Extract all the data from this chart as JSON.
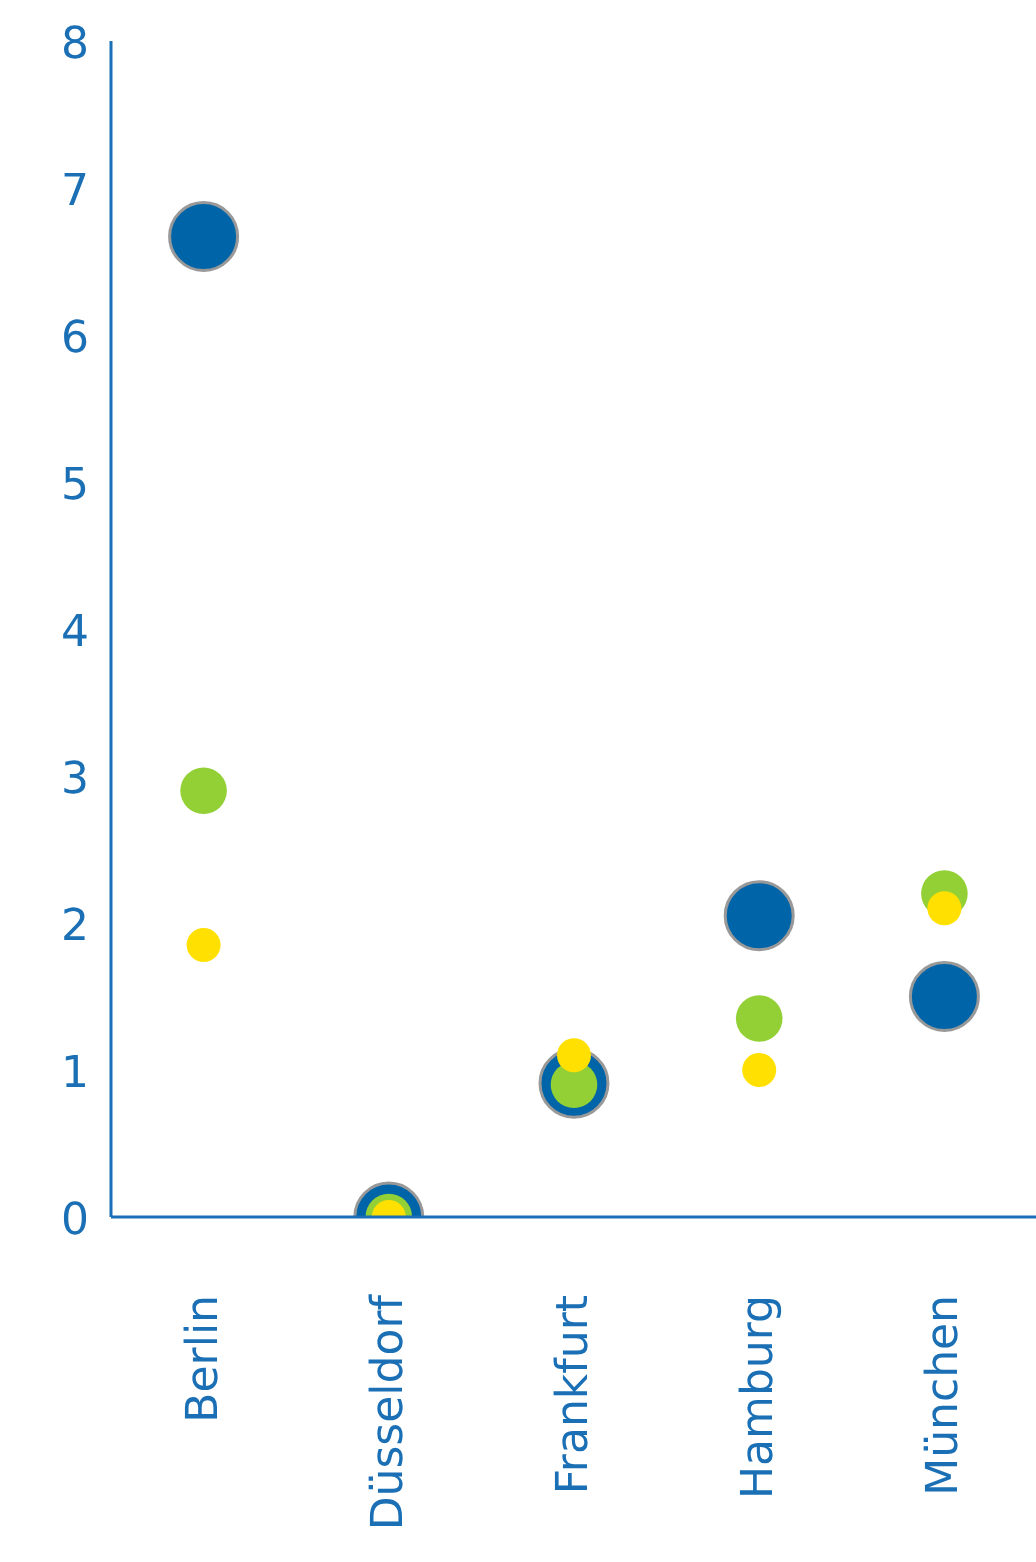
{
  "chart_data": {
    "type": "bubble",
    "categories": [
      "Berlin",
      "Düsseldorf",
      "Frankfurt",
      "Hamburg",
      "München"
    ],
    "ylim": [
      0,
      8
    ],
    "yticks": [
      0,
      1,
      2,
      3,
      4,
      5,
      6,
      7,
      8
    ],
    "grid": false,
    "marker": "circle",
    "series": [
      {
        "color": "#0065a8",
        "values": [
          6.67,
          0,
          0.91,
          2.05,
          1.5
        ],
        "sizes": [
          1,
          1,
          1,
          1,
          1
        ]
      },
      {
        "color": "#92d036",
        "values": [
          2.9,
          0,
          0.9,
          1.35,
          2.2
        ],
        "sizes": [
          0.47,
          0.47,
          0.47,
          0.47,
          0.47
        ]
      },
      {
        "color": "#ffe000",
        "values": [
          1.85,
          0,
          1.1,
          1.0,
          2.1
        ],
        "sizes": [
          0.25,
          0.25,
          0.25,
          0.25,
          0.25
        ]
      }
    ]
  }
}
